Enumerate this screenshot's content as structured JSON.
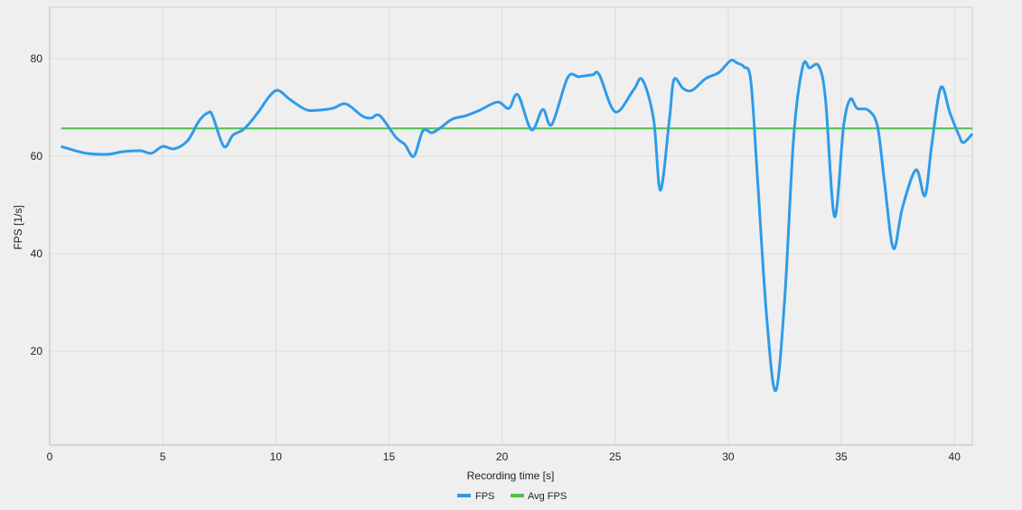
{
  "chart_data": {
    "type": "line",
    "title": "",
    "xlabel": "Recording time [s]",
    "ylabel": "FPS [1/s]",
    "xlim": [
      0,
      40.8
    ],
    "ylim": [
      0.7,
      91
    ],
    "xticks": [
      0,
      5,
      10,
      15,
      20,
      25,
      30,
      35,
      40
    ],
    "yticks": [
      20,
      40,
      60,
      80
    ],
    "grid": true,
    "legend_position": "bottom",
    "series": [
      {
        "name": "FPS",
        "color": "#2f9be8",
        "x": [
          0.5,
          1.6,
          2.6,
          3.2,
          4.0,
          4.5,
          5.0,
          5.5,
          6.1,
          6.6,
          7.0,
          7.2,
          7.7,
          8.1,
          8.6,
          9.2,
          9.7,
          10.1,
          10.6,
          11.3,
          11.8,
          12.5,
          13.1,
          13.8,
          14.2,
          14.6,
          15.3,
          15.7,
          16.1,
          16.5,
          16.9,
          17.3,
          17.8,
          18.4,
          19.0,
          19.8,
          20.3,
          20.7,
          21.3,
          21.8,
          22.2,
          22.9,
          23.4,
          24.0,
          24.3,
          25.0,
          25.8,
          26.2,
          26.7,
          27.0,
          27.4,
          27.6,
          28.0,
          28.4,
          29.0,
          29.6,
          30.1,
          30.4,
          30.7,
          31.0,
          31.3,
          31.7,
          32.1,
          32.5,
          32.9,
          33.3,
          33.6,
          34.0,
          34.3,
          34.7,
          35.1,
          35.4,
          35.7,
          36.2,
          36.6,
          36.9,
          37.3,
          37.7,
          38.3,
          38.7,
          39.0,
          39.4,
          39.8,
          40.2,
          40.4,
          40.8
        ],
        "y": [
          62.0,
          60.6,
          60.4,
          60.9,
          61.1,
          60.6,
          62.0,
          61.5,
          63.2,
          67.2,
          68.9,
          68.3,
          62.0,
          64.3,
          65.6,
          68.9,
          72.2,
          73.5,
          71.7,
          69.6,
          69.4,
          69.8,
          70.7,
          68.3,
          67.8,
          68.3,
          63.9,
          62.4,
          60.0,
          65.2,
          64.8,
          65.9,
          67.6,
          68.3,
          69.4,
          71.1,
          69.8,
          72.6,
          65.4,
          69.6,
          66.5,
          76.1,
          76.3,
          76.7,
          76.7,
          69.1,
          73.5,
          75.7,
          67.6,
          53.0,
          67.6,
          75.7,
          73.9,
          73.5,
          75.9,
          77.2,
          79.6,
          79.1,
          78.3,
          75.4,
          55.0,
          27.0,
          11.9,
          31.0,
          64.3,
          78.5,
          78.1,
          78.5,
          71.7,
          47.6,
          66.1,
          71.7,
          69.8,
          69.4,
          66.1,
          55.0,
          41.1,
          49.4,
          57.2,
          51.9,
          62.4,
          74.1,
          68.9,
          64.3,
          62.8,
          64.6
        ]
      },
      {
        "name": "Avg FPS",
        "color": "#4cc24c",
        "x": [
          0.5,
          40.8
        ],
        "y": [
          65.7,
          65.7
        ]
      }
    ]
  }
}
